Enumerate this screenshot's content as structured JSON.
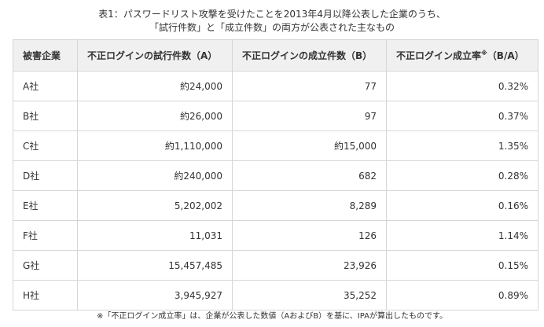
{
  "caption": {
    "line1": "表1：パスワードリスト攻撃を受けたことを2013年4月以降公表した企業のうち、",
    "line2": "「試行件数」と「成立件数」の両方が公表された主なもの"
  },
  "table": {
    "headers": {
      "company": "被害企業",
      "attempts": "不正ログインの試行件数（A）",
      "successes": "不正ログインの成立件数（B）",
      "rate": "不正ログイン成立率",
      "rate_mark": "※",
      "rate_suffix": "（B/A）"
    },
    "rows": [
      {
        "company": "A社",
        "attempts": "約24,000",
        "successes": "77",
        "rate": "0.32%"
      },
      {
        "company": "B社",
        "attempts": "約26,000",
        "successes": "97",
        "rate": "0.37%"
      },
      {
        "company": "C社",
        "attempts": "約1,110,000",
        "successes": "約15,000",
        "rate": "1.35%"
      },
      {
        "company": "D社",
        "attempts": "約240,000",
        "successes": "682",
        "rate": "0.28%"
      },
      {
        "company": "E社",
        "attempts": "5,202,002",
        "successes": "8,289",
        "rate": "0.16%"
      },
      {
        "company": "F社",
        "attempts": "11,031",
        "successes": "126",
        "rate": "1.14%"
      },
      {
        "company": "G社",
        "attempts": "15,457,485",
        "successes": "23,926",
        "rate": "0.15%"
      },
      {
        "company": "H社",
        "attempts": "3,945,927",
        "successes": "35,252",
        "rate": "0.89%"
      }
    ]
  },
  "note": "※「不正ログイン成立率」は、企業が公表した数値（AおよびB）を基に、IPAが算出したものです。"
}
